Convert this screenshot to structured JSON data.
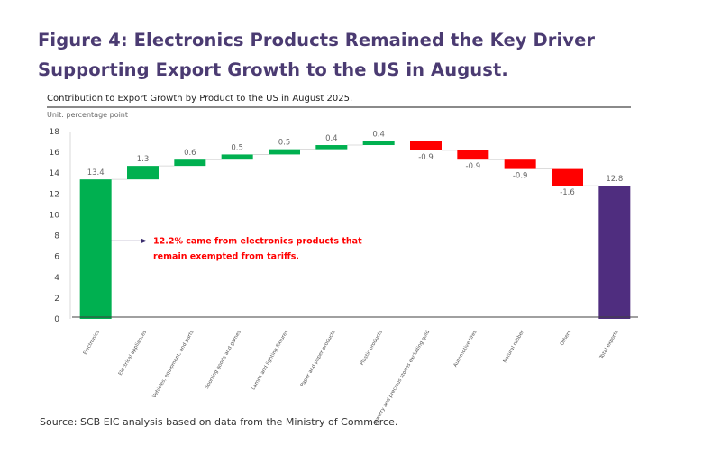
{
  "figure": {
    "title": "Figure 4: Electronics Products Remained the Key Driver Supporting Export Growth to the US in August.",
    "source": "Source: SCB EIC analysis based on data from the Ministry of Commerce."
  },
  "colors": {
    "title": "#4b3b72",
    "positive": "#00b050",
    "negative": "#ff0000",
    "total": "#4f2d7f",
    "annotation": "#ff0000"
  },
  "chart_data": {
    "type": "bar",
    "subtype": "waterfall",
    "title": "Contribution to Export Growth by Product to the US in August 2025.",
    "unit_label": "Unit: percentage point",
    "xlabel": "",
    "ylabel": "",
    "ylim": [
      0,
      18
    ],
    "yticks": [
      0,
      2,
      4,
      6,
      8,
      10,
      12,
      14,
      16,
      18
    ],
    "grid": false,
    "legend": "none",
    "categories": [
      "Electronics",
      "Electrical appliances",
      "Vehicles, equipment, and parts",
      "Sporting goods and games",
      "Lamps and lighting fixtures",
      "Paper and paper products",
      "Plastic products",
      "Jewelry and precious stones excluding gold",
      "Automotive tires",
      "Natural rubber",
      "Others",
      "Total exports"
    ],
    "values": [
      13.4,
      1.3,
      0.6,
      0.5,
      0.5,
      0.4,
      0.4,
      -0.9,
      -0.9,
      -0.9,
      -1.6,
      12.8
    ],
    "labels": [
      "13.4",
      "1.3",
      "0.6",
      "0.5",
      "0.5",
      "0.4",
      "0.4",
      "-0.9",
      "-0.9",
      "-0.9",
      "-1.6",
      "12.8"
    ],
    "bar_kinds": [
      "start",
      "delta",
      "delta",
      "delta",
      "delta",
      "delta",
      "delta",
      "delta",
      "delta",
      "delta",
      "delta",
      "total"
    ],
    "annotation": {
      "lines": [
        "12.2% came from electronics products that",
        "remain exempted from tariffs."
      ],
      "points_to": "Electronics"
    }
  }
}
